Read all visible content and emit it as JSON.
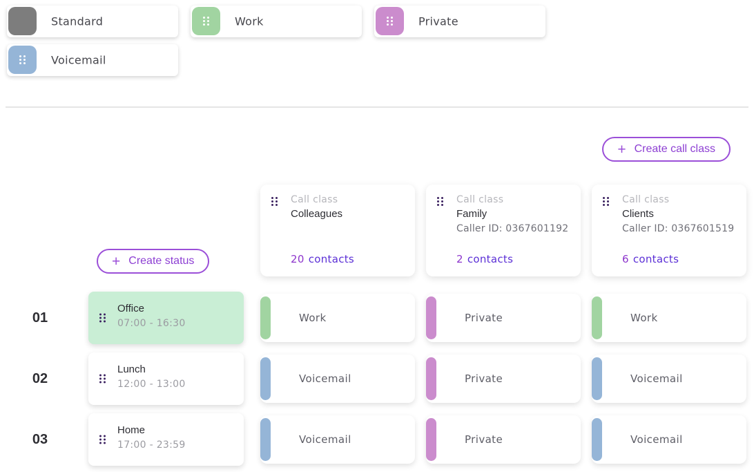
{
  "colors": {
    "standard": "#7d7d7d",
    "work": "#a1d4a1",
    "private": "#cb8ccd",
    "voicemail": "#95b5d7",
    "accent_purple": "#9b4fd8",
    "office_highlight": "#c9eed5",
    "divider": "#e5e5e5",
    "contacts_number": "#8d35cc",
    "contacts_word": "#5b2fd6"
  },
  "legend": {
    "chips": [
      {
        "label": "Standard",
        "type": "standard",
        "draggable": false
      },
      {
        "label": "Work",
        "type": "work",
        "draggable": true
      },
      {
        "label": "Private",
        "type": "private",
        "draggable": true
      },
      {
        "label": "Voicemail",
        "type": "voicemail",
        "draggable": true
      }
    ]
  },
  "toolbar": {
    "create_call_class_label": "Create call class",
    "plus": "+"
  },
  "status_toolbar": {
    "create_status_label": "Create status",
    "plus": "+"
  },
  "call_class_header_label": "Call class",
  "call_classes": [
    {
      "name": "Colleagues",
      "caller_id": "",
      "contacts_count": "20",
      "contacts_word": "contacts"
    },
    {
      "name": "Family",
      "caller_id": "Caller ID: 0367601192",
      "contacts_count": "2",
      "contacts_word": "contacts"
    },
    {
      "name": "Clients",
      "caller_id": "Caller ID: 0367601519",
      "contacts_count": "6",
      "contacts_word": "contacts"
    }
  ],
  "statuses": [
    {
      "number": "01",
      "name": "Office",
      "time_range": "07:00 - 16:30",
      "highlighted": true
    },
    {
      "number": "02",
      "name": "Lunch",
      "time_range": "12:00 - 13:00",
      "highlighted": false
    },
    {
      "number": "03",
      "name": "Home",
      "time_range": "17:00 - 23:59",
      "highlighted": false
    }
  ],
  "assignments": [
    [
      {
        "label": "Work",
        "type": "work"
      },
      {
        "label": "Private",
        "type": "private"
      },
      {
        "label": "Work",
        "type": "work"
      }
    ],
    [
      {
        "label": "Voicemail",
        "type": "voicemail"
      },
      {
        "label": "Private",
        "type": "private"
      },
      {
        "label": "Voicemail",
        "type": "voicemail"
      }
    ],
    [
      {
        "label": "Voicemail",
        "type": "voicemail"
      },
      {
        "label": "Private",
        "type": "private"
      },
      {
        "label": "Voicemail",
        "type": "voicemail"
      }
    ]
  ]
}
